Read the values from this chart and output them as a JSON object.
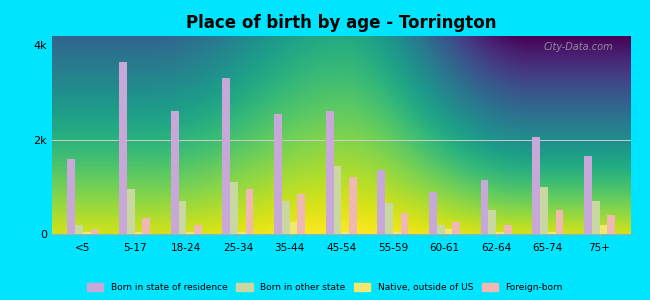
{
  "title": "Place of birth by age - Torrington",
  "categories": [
    "<5",
    "5-17",
    "18-24",
    "25-34",
    "35-44",
    "45-54",
    "55-59",
    "60-61",
    "62-64",
    "65-74",
    "75+"
  ],
  "series": {
    "Born in state of residence": [
      1600,
      3650,
      2600,
      3300,
      2550,
      2600,
      1350,
      900,
      1150,
      2050,
      1650
    ],
    "Born in other state": [
      200,
      950,
      700,
      1100,
      700,
      1450,
      650,
      200,
      500,
      1000,
      700
    ],
    "Native, outside of US": [
      50,
      50,
      50,
      50,
      250,
      50,
      50,
      100,
      50,
      50,
      200
    ],
    "Foreign-born": [
      100,
      350,
      200,
      950,
      850,
      1200,
      450,
      250,
      200,
      500,
      400
    ]
  },
  "colors": {
    "Born in state of residence": "#c8a8d8",
    "Born in other state": "#c8d8a0",
    "Native, outside of US": "#f0e870",
    "Foreign-born": "#f0b8b0"
  },
  "ylim": [
    0,
    4200
  ],
  "yticks": [
    0,
    2000,
    4000
  ],
  "ytick_labels": [
    "0",
    "2k",
    "4k"
  ],
  "figure_bg": "#00e5ff",
  "bar_width": 0.15,
  "grad_bottom": "#c8ddb0",
  "grad_top": "#f5faf5"
}
